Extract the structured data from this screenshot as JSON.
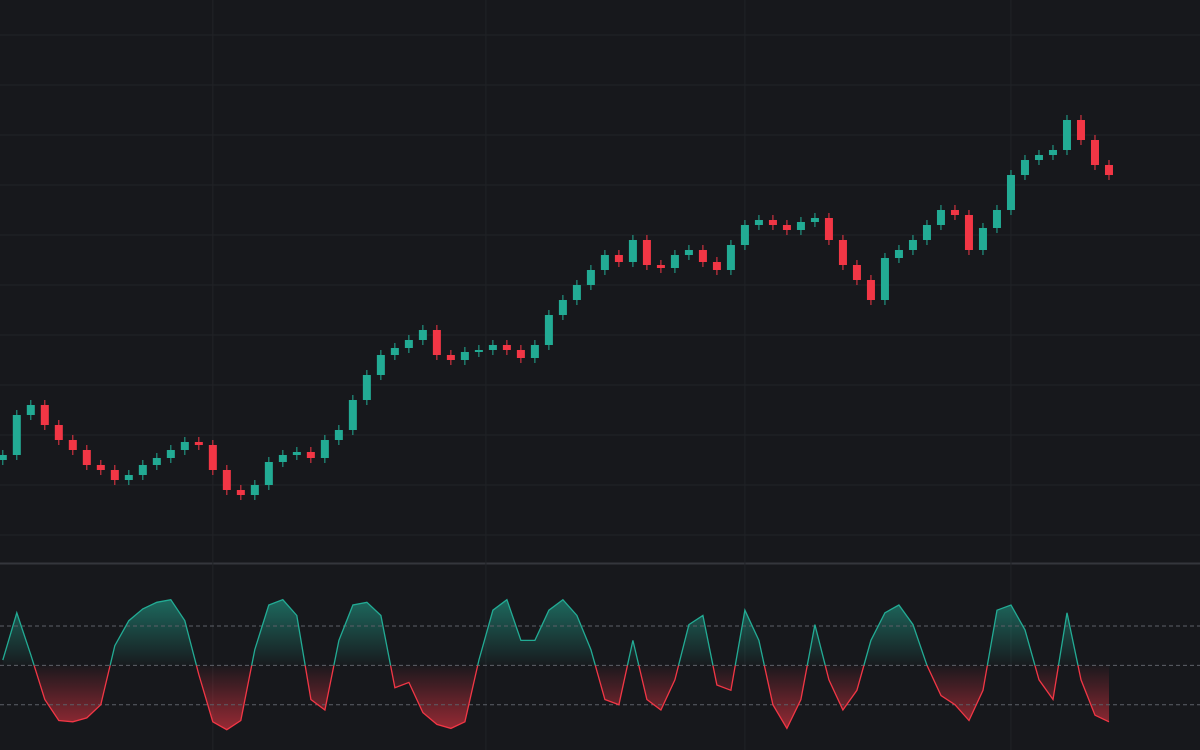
{
  "chart_data": [
    {
      "type": "candlestick",
      "up_color": "#22ab94",
      "down_color": "#f23645",
      "grid": true,
      "xlim": [
        -0.2,
        85.5
      ],
      "xticks": [
        15,
        34.5,
        53,
        72
      ],
      "ylim": [
        40,
        600
      ],
      "yticks": [
        65,
        115,
        165,
        215,
        265,
        315,
        365,
        415,
        465,
        515,
        565
      ],
      "open": [
        140,
        145,
        185,
        195,
        175,
        160,
        150,
        135,
        130,
        120,
        125,
        135,
        142,
        150,
        158,
        155,
        130,
        110,
        105,
        115,
        138,
        145,
        148,
        142,
        160,
        170,
        200,
        225,
        245,
        252,
        260,
        270,
        245,
        240,
        248,
        250,
        255,
        250,
        242,
        255,
        285,
        300,
        315,
        330,
        345,
        338,
        360,
        335,
        332,
        345,
        350,
        338,
        330,
        355,
        375,
        380,
        375,
        370,
        378,
        382,
        360,
        335,
        320,
        300,
        342,
        350,
        360,
        375,
        390,
        385,
        350,
        372,
        390,
        425,
        440,
        445,
        450,
        480,
        460,
        435
      ],
      "high": [
        150,
        190,
        200,
        200,
        180,
        165,
        155,
        140,
        135,
        130,
        140,
        147,
        155,
        163,
        163,
        160,
        135,
        115,
        120,
        143,
        150,
        153,
        153,
        165,
        175,
        205,
        230,
        250,
        257,
        265,
        275,
        275,
        250,
        253,
        255,
        260,
        260,
        255,
        260,
        290,
        305,
        320,
        335,
        350,
        350,
        365,
        365,
        340,
        350,
        355,
        355,
        343,
        360,
        380,
        385,
        385,
        380,
        383,
        387,
        387,
        365,
        340,
        325,
        347,
        355,
        365,
        380,
        395,
        395,
        390,
        377,
        395,
        430,
        445,
        450,
        455,
        485,
        485,
        465,
        440
      ],
      "low": [
        135,
        140,
        180,
        170,
        155,
        145,
        130,
        125,
        115,
        115,
        120,
        130,
        137,
        145,
        150,
        125,
        105,
        100,
        100,
        110,
        133,
        140,
        137,
        137,
        155,
        165,
        195,
        220,
        240,
        247,
        255,
        240,
        235,
        235,
        243,
        245,
        245,
        237,
        237,
        250,
        280,
        295,
        310,
        325,
        333,
        333,
        330,
        327,
        327,
        340,
        333,
        325,
        325,
        350,
        370,
        370,
        365,
        365,
        373,
        355,
        330,
        315,
        295,
        295,
        337,
        345,
        355,
        370,
        380,
        345,
        345,
        367,
        385,
        420,
        435,
        440,
        445,
        455,
        430,
        420
      ],
      "close": [
        145,
        185,
        195,
        175,
        160,
        150,
        135,
        130,
        120,
        125,
        135,
        142,
        150,
        158,
        155,
        130,
        110,
        105,
        115,
        138,
        145,
        148,
        142,
        160,
        170,
        200,
        225,
        245,
        252,
        260,
        270,
        245,
        240,
        248,
        250,
        255,
        250,
        242,
        255,
        285,
        300,
        315,
        330,
        345,
        338,
        360,
        335,
        332,
        345,
        350,
        338,
        330,
        355,
        375,
        380,
        375,
        370,
        378,
        382,
        360,
        335,
        320,
        300,
        342,
        350,
        360,
        375,
        390,
        385,
        350,
        372,
        390,
        425,
        440,
        445,
        450,
        480,
        460,
        435,
        425
      ]
    },
    {
      "type": "oscillator",
      "up_color": "#22ab94",
      "down_color": "#f23645",
      "midline": 50,
      "xlim": [
        -0.2,
        85.5
      ],
      "ylim": [
        0,
        100
      ],
      "levels": [
        20,
        50,
        80
      ],
      "values": [
        54,
        90,
        58,
        24,
        8,
        7,
        10,
        20,
        65,
        84,
        93,
        98,
        100,
        84,
        43,
        7,
        1,
        8,
        62,
        96,
        100,
        88,
        24,
        16,
        69,
        96,
        98,
        88,
        33,
        37,
        14,
        5,
        2,
        7,
        54,
        92,
        100,
        69,
        69,
        92,
        100,
        88,
        62,
        24,
        20,
        69,
        24,
        16,
        39,
        81,
        88,
        35,
        31,
        92,
        69,
        20,
        2,
        24,
        81,
        39,
        16,
        31,
        69,
        90,
        96,
        81,
        50,
        27,
        20,
        8,
        31,
        92,
        96,
        77,
        39,
        24,
        90,
        39,
        12,
        7
      ]
    }
  ]
}
